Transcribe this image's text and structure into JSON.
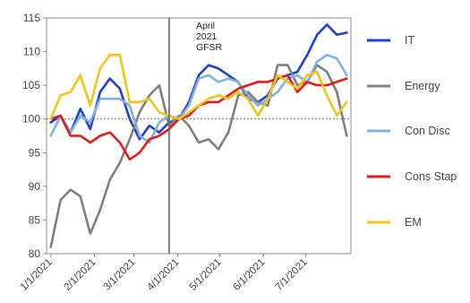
{
  "chart_data": {
    "type": "line",
    "title": "",
    "xlabel": "",
    "ylabel": "",
    "ylim": [
      80,
      115
    ],
    "yticks": [
      80,
      85,
      90,
      95,
      100,
      105,
      110,
      115
    ],
    "x_tick_labels": [
      "1/1/2021",
      "2/1/2021",
      "3/1/2021",
      "4/1/2021",
      "5/1/2021",
      "6/1/2021",
      "7/1/2021"
    ],
    "x": [
      "1/1/2021",
      "1/8/2021",
      "1/15/2021",
      "1/22/2021",
      "1/29/2021",
      "2/5/2021",
      "2/12/2021",
      "2/19/2021",
      "2/26/2021",
      "3/5/2021",
      "3/12/2021",
      "3/19/2021",
      "3/26/2021",
      "4/2/2021",
      "4/9/2021",
      "4/16/2021",
      "4/23/2021",
      "4/30/2021",
      "5/7/2021",
      "5/14/2021",
      "5/21/2021",
      "5/28/2021",
      "6/4/2021",
      "6/11/2021",
      "6/18/2021",
      "6/25/2021",
      "7/2/2021",
      "7/9/2021",
      "7/16/2021",
      "7/23/2021",
      "7/30/2021"
    ],
    "baseline": 100,
    "annotation": {
      "date": "3/26/2021",
      "lines": [
        "April",
        "2021",
        "GFSR"
      ]
    },
    "legend_position": "right",
    "series": [
      {
        "name": "IT",
        "color": "#1f3fd1",
        "values": [
          99.5,
          100.5,
          98.0,
          101.5,
          98.5,
          104.0,
          106.0,
          104.5,
          100.0,
          97.0,
          99.0,
          98.0,
          99.5,
          100.0,
          102.5,
          106.5,
          108.0,
          107.5,
          106.5,
          105.5,
          103.0,
          102.5,
          103.5,
          106.0,
          106.5,
          107.0,
          109.5,
          112.5,
          114.0,
          112.5,
          112.8
        ]
      },
      {
        "name": "Energy",
        "color": "#7f7f7f",
        "values": [
          81.0,
          88.0,
          89.5,
          88.5,
          83.0,
          86.5,
          91.0,
          93.5,
          97.0,
          101.0,
          103.5,
          105.0,
          99.0,
          100.5,
          99.0,
          96.5,
          97.0,
          95.5,
          98.0,
          103.5,
          104.0,
          102.5,
          102.0,
          108.0,
          108.0,
          105.0,
          105.5,
          108.0,
          107.0,
          104.0,
          97.5
        ]
      },
      {
        "name": "Con Disc",
        "color": "#7fb2dc",
        "values": [
          97.5,
          100.5,
          98.0,
          100.5,
          99.5,
          103.0,
          103.0,
          103.0,
          102.0,
          97.5,
          96.5,
          99.5,
          100.5,
          100.0,
          102.0,
          106.0,
          106.5,
          105.5,
          106.0,
          105.5,
          103.5,
          102.0,
          103.0,
          104.0,
          106.0,
          106.5,
          105.5,
          108.5,
          109.5,
          109.0,
          106.5
        ]
      },
      {
        "name": "Cons Stap",
        "color": "#e31b1b",
        "values": [
          100.0,
          100.5,
          97.5,
          97.5,
          96.5,
          97.5,
          98.0,
          96.5,
          94.0,
          95.0,
          97.0,
          97.5,
          98.5,
          100.0,
          100.5,
          102.0,
          102.5,
          102.5,
          103.5,
          104.5,
          105.0,
          105.5,
          105.5,
          106.0,
          106.5,
          104.0,
          105.5,
          105.0,
          105.0,
          105.5,
          106.0
        ]
      },
      {
        "name": "EM",
        "color": "#f0c419",
        "values": [
          100.0,
          103.5,
          104.0,
          106.5,
          102.0,
          107.5,
          109.5,
          109.5,
          102.5,
          102.5,
          103.0,
          101.0,
          100.5,
          100.0,
          101.0,
          102.0,
          103.0,
          103.5,
          103.0,
          104.0,
          103.0,
          100.5,
          103.0,
          106.5,
          105.5,
          104.5,
          106.5,
          107.0,
          103.5,
          100.5,
          102.5
        ]
      }
    ]
  }
}
